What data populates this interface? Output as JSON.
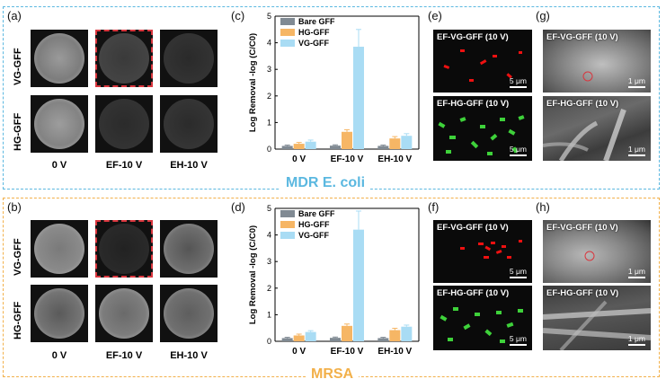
{
  "banners": {
    "top": "MDR E. coli",
    "top_color": "#5bb8e0",
    "bottom": "MRSA",
    "bottom_color": "#f2b04a"
  },
  "panel_labels": {
    "a": "(a)",
    "b": "(b)",
    "c": "(c)",
    "d": "(d)",
    "e": "(e)",
    "f": "(f)",
    "g": "(g)",
    "h": "(h)"
  },
  "dish_rows": [
    "VG-GFF",
    "HG-GFF"
  ],
  "dish_cols": [
    "0 V",
    "EF-10 V",
    "EH-10 V"
  ],
  "fluorescence": {
    "e_top": "EF-VG-GFF (10 V)",
    "e_bottom": "EF-HG-GFF (10 V)",
    "f_top": "EF-VG-GFF (10 V)",
    "f_bottom": "EF-HG-GFF (10 V)",
    "scale": "5 μm"
  },
  "sem": {
    "g_top": "EF-VG-GFF (10 V)",
    "g_bottom": "EF-HG-GFF (10 V)",
    "h_top": "EF-VG-GFF (10 V)",
    "h_bottom": "EF-HG-GFF (10 V)",
    "scale": "1 μm"
  },
  "colors": {
    "bare": "#808a93",
    "hg": "#f6b665",
    "vg": "#a9dcf4"
  },
  "chart_data": [
    {
      "type": "bar",
      "panel": "(c)",
      "categories": [
        "0 V",
        "EF-10 V",
        "EH-10 V"
      ],
      "ylabel": "Log Removal  -log (C/C0)",
      "ylim": [
        0,
        5
      ],
      "yticks": [
        0,
        1,
        2,
        3,
        4,
        5
      ],
      "series": [
        {
          "name": "Bare GFF",
          "values": [
            0.12,
            0.13,
            0.12
          ],
          "errors": [
            0.03,
            0.03,
            0.03
          ]
        },
        {
          "name": "HG-GFF",
          "values": [
            0.2,
            0.65,
            0.4
          ],
          "errors": [
            0.05,
            0.08,
            0.07
          ]
        },
        {
          "name": "VG-GFF",
          "values": [
            0.28,
            3.85,
            0.5
          ],
          "errors": [
            0.06,
            0.65,
            0.08
          ]
        }
      ]
    },
    {
      "type": "bar",
      "panel": "(d)",
      "categories": [
        "0 V",
        "EF-10 V",
        "EH-10 V"
      ],
      "ylabel": "Log Removal  -log (C/C0)",
      "ylim": [
        0,
        5
      ],
      "yticks": [
        0,
        1,
        2,
        3,
        4,
        5
      ],
      "series": [
        {
          "name": "Bare GFF",
          "values": [
            0.12,
            0.13,
            0.12
          ],
          "errors": [
            0.03,
            0.03,
            0.03
          ]
        },
        {
          "name": "HG-GFF",
          "values": [
            0.22,
            0.58,
            0.42
          ],
          "errors": [
            0.05,
            0.07,
            0.07
          ]
        },
        {
          "name": "VG-GFF",
          "values": [
            0.35,
            4.2,
            0.55
          ],
          "errors": [
            0.05,
            0.7,
            0.06
          ]
        }
      ]
    }
  ]
}
